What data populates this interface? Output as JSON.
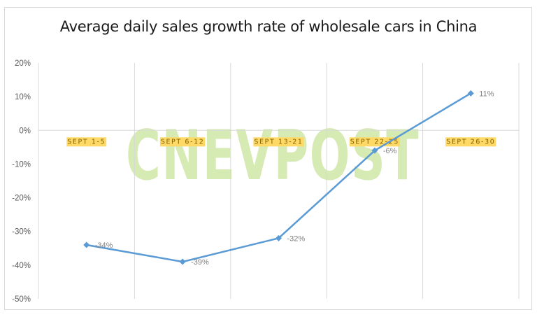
{
  "title": "Average daily sales growth rate of wholesale cars in China",
  "watermark": "CNEVPOST",
  "colors": {
    "line": "#5b9bd5",
    "gridline": "#d9d9d9",
    "category_highlight": "#ffd966",
    "watermark": "#c9e39a"
  },
  "y_axis": {
    "ticks": [
      "20%",
      "10%",
      "0%",
      "-10%",
      "-20%",
      "-30%",
      "-40%",
      "-50%"
    ]
  },
  "chart_data": {
    "type": "line",
    "title": "Average daily sales growth rate of wholesale cars in China",
    "xlabel": "",
    "ylabel": "",
    "categories": [
      "SEPT 1-5",
      "SEPT 6-12",
      "SEPT 13-21",
      "SEPT 22-25",
      "SEPT 26-30"
    ],
    "series": [
      {
        "name": "Average daily sales growth rate",
        "values": [
          -34,
          -39,
          -32,
          -6,
          11
        ],
        "labels": [
          "-34%",
          "-39%",
          "-32%",
          "-6%",
          "11%"
        ]
      }
    ],
    "ylim": [
      -50,
      20
    ],
    "ytick_step": 10,
    "y_format": "percent",
    "grid": {
      "horizontal": false,
      "vertical": true,
      "zero_line": true
    },
    "legend": "none",
    "marker": "diamond"
  }
}
